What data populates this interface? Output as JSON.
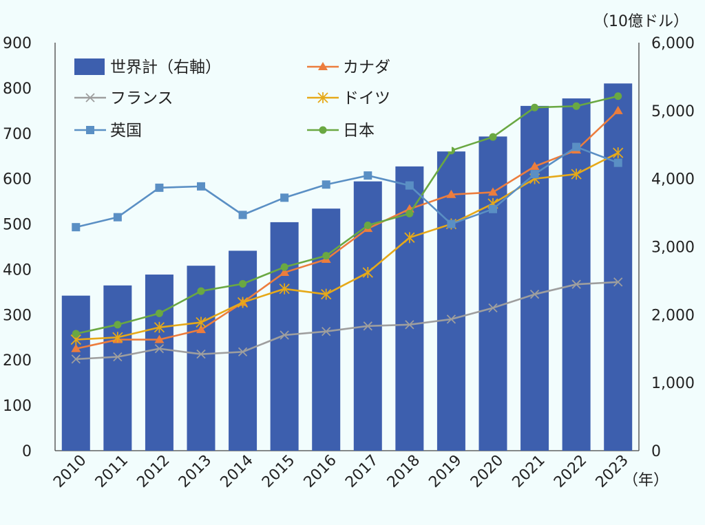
{
  "chart_data": {
    "type": "bar+line",
    "unit_label": "（10億ドル）",
    "x_unit_label": "（年）",
    "categories": [
      "2010",
      "2011",
      "2012",
      "2013",
      "2014",
      "2015",
      "2016",
      "2017",
      "2018",
      "2019",
      "2020",
      "2021",
      "2022",
      "2023"
    ],
    "left_axis": {
      "ylim": [
        0,
        900
      ],
      "ticks": [
        "0",
        "100",
        "200",
        "300",
        "400",
        "500",
        "600",
        "700",
        "800",
        "900"
      ]
    },
    "right_axis": {
      "ylim": [
        0,
        6000
      ],
      "ticks": [
        "0",
        "1,000",
        "2,000",
        "3,000",
        "4,000",
        "5,000",
        "6,000"
      ]
    },
    "bar_series": {
      "name": "世界計（右軸）",
      "color": "#3d5fae",
      "axis": "right",
      "values": [
        2280,
        2430,
        2590,
        2720,
        2940,
        3360,
        3560,
        3960,
        4180,
        4400,
        4620,
        5070,
        5180,
        5400
      ]
    },
    "line_series": [
      {
        "name": "カナダ",
        "color": "#ec7d3d",
        "marker": "triangle",
        "values": [
          225,
          245,
          245,
          267,
          327,
          393,
          422,
          490,
          533,
          565,
          570,
          627,
          663,
          750
        ]
      },
      {
        "name": "ドイツ",
        "color": "#e6a919",
        "marker": "star",
        "values": [
          245,
          250,
          272,
          283,
          327,
          357,
          345,
          393,
          470,
          500,
          545,
          600,
          610,
          657
        ]
      },
      {
        "name": "フランス",
        "color": "#9e9e9e",
        "marker": "x",
        "values": [
          202,
          207,
          225,
          213,
          218,
          255,
          263,
          275,
          278,
          290,
          315,
          345,
          367,
          372
        ]
      },
      {
        "name": "日本",
        "color": "#6aa842",
        "marker": "circle",
        "values": [
          258,
          278,
          303,
          352,
          368,
          405,
          430,
          497,
          523,
          662,
          692,
          757,
          760,
          782
        ]
      },
      {
        "name": "英国",
        "color": "#5a8fc4",
        "marker": "square",
        "values": [
          493,
          515,
          580,
          583,
          520,
          558,
          587,
          607,
          585,
          500,
          533,
          610,
          670,
          635
        ]
      }
    ],
    "legend": {
      "placement": "top-left",
      "entries": [
        "世界計（右軸）",
        "カナダ",
        "フランス",
        "ドイツ",
        "英国",
        "日本"
      ]
    }
  }
}
